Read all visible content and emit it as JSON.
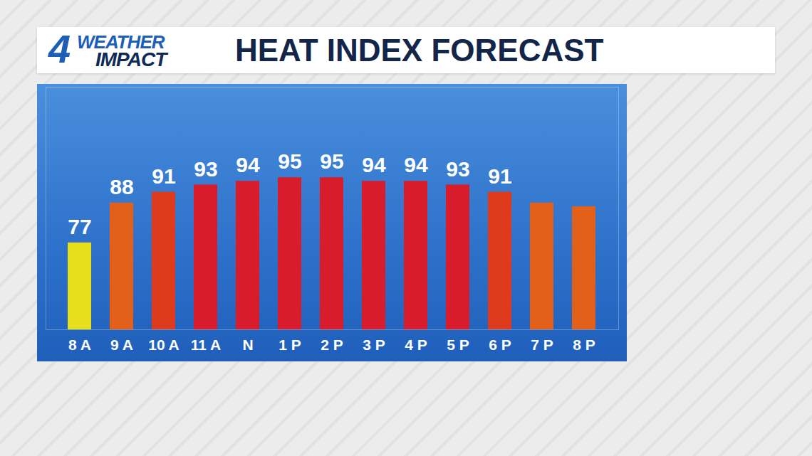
{
  "chart_data": {
    "type": "bar",
    "title": "HEAT INDEX FORECAST",
    "logo": [
      "4",
      "WEATHER",
      "IMPACT"
    ],
    "categories": [
      "8 A",
      "9 A",
      "10 A",
      "11 A",
      "N",
      "1 P",
      "2 P",
      "3 P",
      "4 P",
      "5 P",
      "6 P",
      "7 P",
      "8 P"
    ],
    "values": [
      77,
      88,
      91,
      93,
      94,
      95,
      95,
      94,
      94,
      93,
      91,
      88,
      87
    ],
    "value_labels": [
      "77",
      "88",
      "91",
      "93",
      "94",
      "95",
      "95",
      "94",
      "94",
      "93",
      "91",
      null,
      null
    ],
    "colors": [
      "#e6e01c",
      "#e2601a",
      "#de3a1c",
      "#d81c2c",
      "#d81c2c",
      "#d81c2c",
      "#d81c2c",
      "#d81c2c",
      "#d81c2c",
      "#d81c2c",
      "#de3a1c",
      "#e2601a",
      "#e2601a"
    ],
    "ylim": [
      53,
      120
    ],
    "yticks": [],
    "tick_labels": "x",
    "data_labels": true,
    "grid": false
  }
}
